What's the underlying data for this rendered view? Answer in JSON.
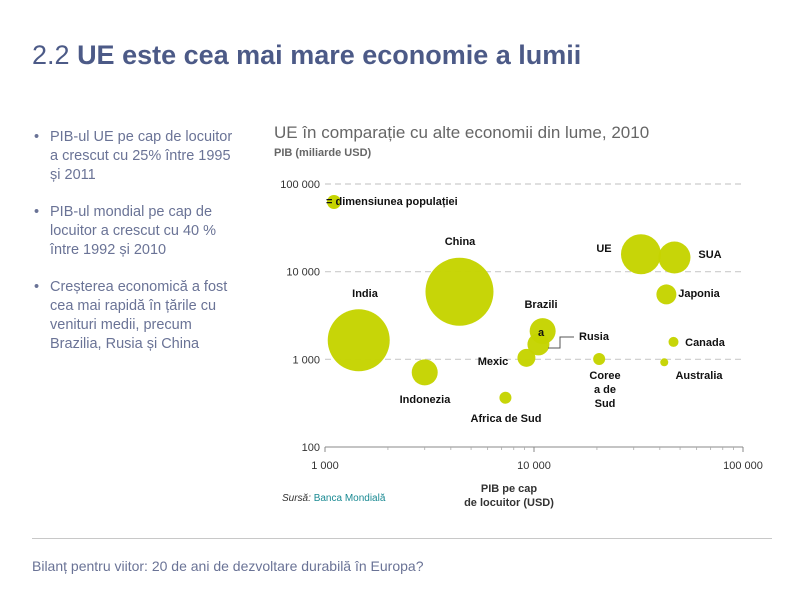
{
  "slide": {
    "title_number": "2.2",
    "title_text": "UE este cea mai mare economie a lumii",
    "bullets": [
      "PIB-ul UE pe cap de locuitor a crescut cu 25% între 1995 și 2011",
      "PIB-ul mondial pe cap de locuitor a crescut cu 40 % între 1992 și 2010",
      "Creșterea economică a fost cea mai rapidă în țările cu venituri medii, precum Brazilia, Rusia și China"
    ],
    "source_label": "Sursă:",
    "source_name": "Banca Mondială",
    "footer": "Bilanț pentru viitor: 20 de ani de dezvoltare durabilă în Europa?"
  },
  "colors": {
    "title": "#4c5a87",
    "bullet_text": "#6a7396",
    "bubble": "#c5d400",
    "gridline": "#cccccc",
    "source_link": "#1a8a93"
  },
  "chart_data": {
    "type": "scatter",
    "title": "UE în comparație cu alte economii din lume, 2010",
    "subtitle": "PIB (miliarde USD)",
    "xlabel": "PIB pe cap de locuitor (USD)",
    "ylabel": "PIB (miliarde USD)",
    "x_scale": "log",
    "y_scale": "log",
    "xlim": [
      1000,
      100000
    ],
    "ylim": [
      100,
      100000
    ],
    "x_ticks": [
      1000,
      10000,
      100000
    ],
    "x_tick_labels": [
      "1 000",
      "10 000",
      "100 000"
    ],
    "y_ticks": [
      100,
      1000,
      10000,
      100000
    ],
    "y_tick_labels": [
      "100",
      "1 000",
      "10 000",
      "100 000"
    ],
    "grid": "horizontal dashed",
    "legend": {
      "label": "= dimensiunea populației"
    },
    "points": [
      {
        "label": "China",
        "x": 4400,
        "y": 5900,
        "r": 34
      },
      {
        "label": "India",
        "x": 1450,
        "y": 1650,
        "r": 31
      },
      {
        "label": "UE",
        "x": 32500,
        "y": 15800,
        "r": 20
      },
      {
        "label": "SUA",
        "x": 47000,
        "y": 14500,
        "r": 16
      },
      {
        "label": "Japonia",
        "x": 43000,
        "y": 5500,
        "r": 10
      },
      {
        "label": "Brazilia",
        "x": 11000,
        "y": 2100,
        "r": 13
      },
      {
        "label": "Rusia",
        "x": 10500,
        "y": 1480,
        "r": 11
      },
      {
        "label": "Mexic",
        "x": 9200,
        "y": 1040,
        "r": 9
      },
      {
        "label": "Indonezia",
        "x": 3000,
        "y": 710,
        "r": 13
      },
      {
        "label": "Coreea de Sud",
        "x": 20500,
        "y": 1010,
        "r": 6
      },
      {
        "label": "Canada",
        "x": 46500,
        "y": 1580,
        "r": 5
      },
      {
        "label": "Australia",
        "x": 42000,
        "y": 925,
        "r": 4
      },
      {
        "label": "Africa de Sud",
        "x": 7300,
        "y": 365,
        "r": 6
      }
    ]
  }
}
